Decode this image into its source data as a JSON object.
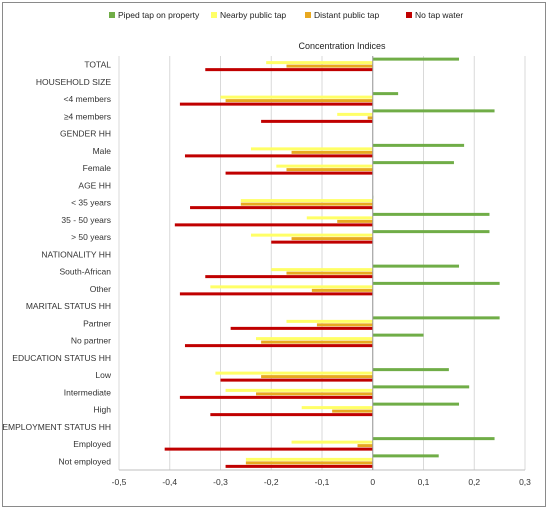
{
  "chart_data": {
    "type": "bar",
    "orientation": "horizontal",
    "title": "Concentration Indices",
    "xlim": [
      -0.5,
      0.3
    ],
    "xticks": [
      "-0,5",
      "-0,4",
      "-0,3",
      "-0,2",
      "-0,1",
      "0",
      "0,1",
      "0,2",
      "0,3"
    ],
    "xtick_values": [
      -0.5,
      -0.4,
      -0.3,
      -0.2,
      -0.1,
      0,
      0.1,
      0.2,
      0.3
    ],
    "grid": true,
    "legend_position": "top",
    "series": [
      {
        "name": "Piped tap on property",
        "color": "#70AD47"
      },
      {
        "name": "Nearby public tap",
        "color": "#FFFF66"
      },
      {
        "name": "Distant public tap",
        "color": "#E8A820"
      },
      {
        "name": "No tap water",
        "color": "#C00000"
      }
    ],
    "rows": [
      {
        "label": "TOTAL",
        "header": false,
        "values": [
          0.17,
          -0.21,
          -0.17,
          -0.33
        ]
      },
      {
        "label": "HOUSEHOLD SIZE",
        "header": true
      },
      {
        "label": "<4 members",
        "header": false,
        "values": [
          0.05,
          -0.3,
          -0.29,
          -0.38
        ]
      },
      {
        "label": "≥4 members",
        "header": false,
        "values": [
          0.24,
          -0.07,
          -0.01,
          -0.22
        ]
      },
      {
        "label": "GENDER HH",
        "header": true
      },
      {
        "label": "Male",
        "header": false,
        "values": [
          0.18,
          -0.24,
          -0.16,
          -0.37
        ]
      },
      {
        "label": "Female",
        "header": false,
        "values": [
          0.16,
          -0.19,
          -0.17,
          -0.29
        ]
      },
      {
        "label": "AGE HH",
        "header": true
      },
      {
        "label": "< 35 years",
        "header": false,
        "values": [
          0.0,
          -0.26,
          -0.26,
          -0.36
        ]
      },
      {
        "label": "35 - 50 years",
        "header": false,
        "values": [
          0.23,
          -0.13,
          -0.07,
          -0.39
        ]
      },
      {
        "label": "> 50 years",
        "header": false,
        "values": [
          0.23,
          -0.24,
          -0.16,
          -0.2
        ]
      },
      {
        "label": "NATIONALITY HH",
        "header": true
      },
      {
        "label": "South-African",
        "header": false,
        "values": [
          0.17,
          -0.2,
          -0.17,
          -0.33
        ]
      },
      {
        "label": "Other",
        "header": false,
        "values": [
          0.25,
          -0.32,
          -0.12,
          -0.38
        ]
      },
      {
        "label": "MARITAL STATUS HH",
        "header": true
      },
      {
        "label": "Partner",
        "header": false,
        "values": [
          0.25,
          -0.17,
          -0.11,
          -0.28
        ]
      },
      {
        "label": "No partner",
        "header": false,
        "values": [
          0.1,
          -0.23,
          -0.22,
          -0.37
        ]
      },
      {
        "label": "EDUCATION STATUS HH",
        "header": true
      },
      {
        "label": "Low",
        "header": false,
        "values": [
          0.15,
          -0.31,
          -0.22,
          -0.3
        ]
      },
      {
        "label": "Intermediate",
        "header": false,
        "values": [
          0.19,
          -0.29,
          -0.23,
          -0.38
        ]
      },
      {
        "label": "High",
        "header": false,
        "values": [
          0.17,
          -0.14,
          -0.08,
          -0.32
        ]
      },
      {
        "label": "EMPLOYMENT STATUS HH",
        "header": true
      },
      {
        "label": "Employed",
        "header": false,
        "values": [
          0.24,
          -0.16,
          -0.03,
          -0.41
        ]
      },
      {
        "label": "Not employed",
        "header": false,
        "values": [
          0.13,
          -0.25,
          -0.25,
          -0.29
        ]
      }
    ]
  }
}
